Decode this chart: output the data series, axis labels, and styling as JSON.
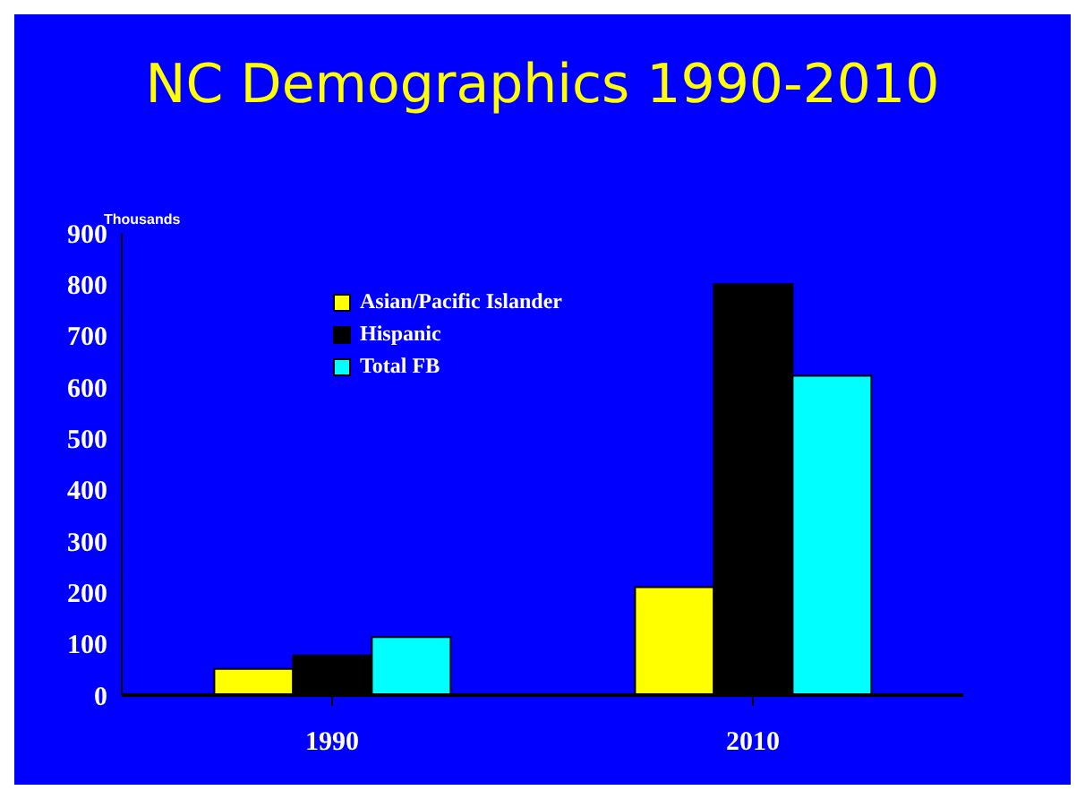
{
  "chart_data": {
    "type": "bar",
    "title": "NC Demographics 1990-2010",
    "ylabel": "Thousands",
    "categories": [
      "1990",
      "2010"
    ],
    "series": [
      {
        "name": "Asian/Pacific Islander",
        "color": "#ffff00",
        "values": [
          51,
          210
        ]
      },
      {
        "name": "Hispanic",
        "color": "#000000",
        "values": [
          77,
          800
        ]
      },
      {
        "name": "Total FB",
        "color": "#00ffff",
        "values": [
          113,
          622
        ]
      }
    ],
    "ylim": [
      0,
      900
    ],
    "yticks": [
      0,
      100,
      200,
      300,
      400,
      500,
      600,
      700,
      800,
      900
    ],
    "grid": false,
    "legend": "top left"
  }
}
